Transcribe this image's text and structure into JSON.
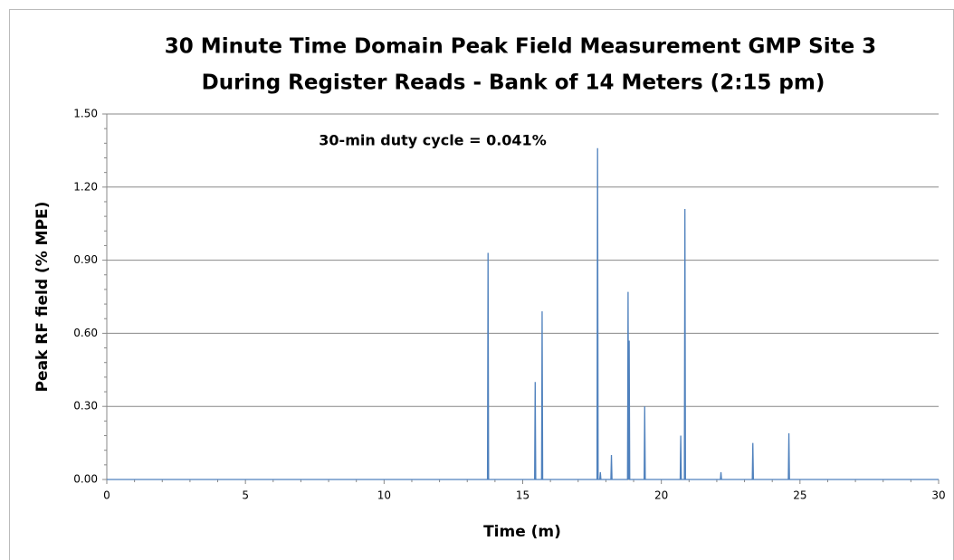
{
  "chart_data": {
    "type": "line",
    "title": [
      "30 Minute Time Domain Peak Field Measurement GMP Site 3",
      "During Register Reads - Bank of 14 Meters (2:15 pm)"
    ],
    "annotation": "30-min duty cycle = 0.041%",
    "x_label": "Time (m)",
    "y_label": "Peak RF field (% MPE)",
    "xlim": [
      0,
      30
    ],
    "xticks": [
      0,
      5,
      10,
      15,
      20,
      25,
      30
    ],
    "ylim": [
      0,
      1.5
    ],
    "yticks": [
      {
        "value": 0,
        "label": "0.00"
      },
      {
        "value": 0.3,
        "label": "0.30"
      },
      {
        "value": 0.6,
        "label": "0.60"
      },
      {
        "value": 0.9,
        "label": "0.90"
      },
      {
        "value": 1.2,
        "label": "1.20"
      },
      {
        "value": 1.5,
        "label": "1.50"
      }
    ],
    "grid": true,
    "series": [
      {
        "color": "#4f81bd",
        "x": [
          0,
          13.73,
          13.75,
          13.77,
          15.43,
          15.45,
          15.47,
          15.68,
          15.7,
          15.72,
          17.68,
          17.7,
          17.72,
          17.78,
          17.8,
          17.82,
          18.18,
          18.2,
          18.22,
          18.78,
          18.8,
          18.82,
          18.84,
          18.86,
          18.88,
          19.38,
          19.4,
          19.42,
          20.68,
          20.7,
          20.72,
          20.83,
          20.85,
          20.87,
          22.13,
          22.15,
          22.17,
          23.28,
          23.3,
          23.32,
          24.58,
          24.6,
          24.62,
          30
        ],
        "values": [
          0,
          0,
          0.93,
          0,
          0,
          0.4,
          0,
          0,
          0.69,
          0,
          0,
          1.36,
          0,
          0,
          0.03,
          0,
          0,
          0.1,
          0,
          0,
          0.77,
          0,
          0.57,
          0,
          0,
          0,
          0.3,
          0,
          0,
          0.18,
          0,
          0,
          1.11,
          0,
          0,
          0.03,
          0,
          0,
          0.15,
          0,
          0,
          0.19,
          0,
          0
        ]
      }
    ]
  }
}
